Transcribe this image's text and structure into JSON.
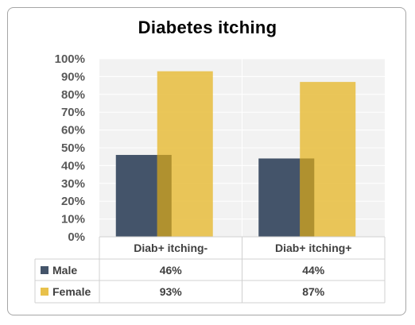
{
  "chart_data": {
    "type": "bar",
    "title": "Diabetes  itching",
    "categories": [
      "Diab+ itching-",
      "Diab+ itching+"
    ],
    "series": [
      {
        "name": "Male",
        "values": [
          46,
          44
        ],
        "color": "#44546a",
        "labels": [
          "46%",
          "44%"
        ]
      },
      {
        "name": "Female",
        "values": [
          93,
          87
        ],
        "color": "#e8c14b",
        "labels": [
          "93%",
          "87%"
        ]
      }
    ],
    "ylim": [
      0,
      100
    ],
    "yticks": [
      "0%",
      "10%",
      "20%",
      "30%",
      "40%",
      "50%",
      "60%",
      "70%",
      "80%",
      "90%",
      "100%"
    ],
    "legend": "data-table",
    "grid": true
  }
}
